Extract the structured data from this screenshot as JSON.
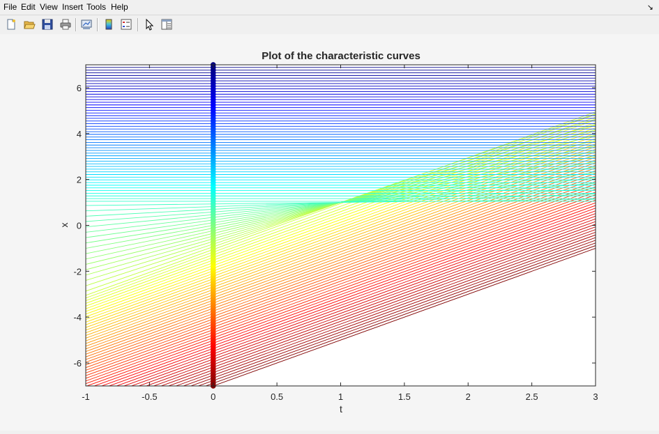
{
  "menu": {
    "file": "File",
    "edit": "Edit",
    "view": "View",
    "insert": "Insert",
    "tools": "Tools",
    "help": "Help",
    "dock_glyph": "↘"
  },
  "toolbar": {
    "icons": [
      "new-figure-icon",
      "open-file-icon",
      "save-icon",
      "print-icon",
      "link-plot-icon",
      "colorbar-icon",
      "legend-icon",
      "pointer-icon",
      "property-editor-icon"
    ]
  },
  "chart_data": {
    "type": "line",
    "title": "Plot of the characteristic curves",
    "xlabel": "t",
    "ylabel": "x",
    "xlim": [
      -1,
      3
    ],
    "ylim": [
      -7,
      7
    ],
    "xticks": [
      -1,
      -0.5,
      0,
      0.5,
      1,
      1.5,
      2,
      2.5,
      3
    ],
    "xtick_labels": [
      "-1",
      "-0.5",
      "0",
      "0.5",
      "1",
      "1.5",
      "2",
      "2.5",
      "3"
    ],
    "yticks": [
      -6,
      -4,
      -2,
      0,
      2,
      4,
      6
    ],
    "ytick_labels": [
      "-6",
      "-4",
      "-2",
      "0",
      "2",
      "4",
      "6"
    ],
    "grid": false,
    "colormap": "jet",
    "series_description": "Characteristic lines x = x0 + a(x0)·t for initial points x0 at t = 0, coloured by x0; markers along t = 0 mark the initial points.",
    "initial_points": {
      "x0_min": -7,
      "x0_max": 7,
      "count": 121
    },
    "slopes": [
      {
        "x0": -7,
        "slope": 2.0
      },
      {
        "x0": -1,
        "slope": 2.0
      },
      {
        "x0": 0,
        "slope": 1.0
      },
      {
        "x0": 1,
        "slope": 0.0
      },
      {
        "x0": 7,
        "slope": 0.0
      }
    ]
  }
}
